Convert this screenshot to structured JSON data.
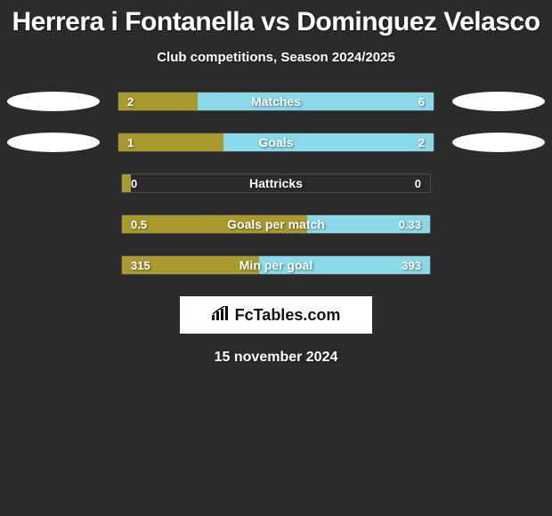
{
  "title": "Herrera i Fontanella vs Dominguez Velasco",
  "subtitle": "Club competitions, Season 2024/2025",
  "colors": {
    "left_bar": "#a89a2f",
    "right_bar": "#8ad8e8",
    "background": "#2b2b2b",
    "ellipse": "#ffffff",
    "text": "#ffffff"
  },
  "rows": [
    {
      "label": "Matches",
      "left_val": "2",
      "right_val": "6",
      "left_pct": 25,
      "right_pct": 75,
      "show_ellipses": true
    },
    {
      "label": "Goals",
      "left_val": "1",
      "right_val": "2",
      "left_pct": 33.3,
      "right_pct": 66.7,
      "show_ellipses": true
    },
    {
      "label": "Hattricks",
      "left_val": "0",
      "right_val": "0",
      "left_pct": 3,
      "right_pct": 0,
      "show_ellipses": false
    },
    {
      "label": "Goals per match",
      "left_val": "0.5",
      "right_val": "0.33",
      "left_pct": 60,
      "right_pct": 40,
      "show_ellipses": false
    },
    {
      "label": "Min per goal",
      "left_val": "315",
      "right_val": "393",
      "left_pct": 44.5,
      "right_pct": 55.5,
      "show_ellipses": false
    }
  ],
  "logo": "FcTables.com",
  "date": "15 november 2024",
  "typography": {
    "title_fontsize": 30,
    "subtitle_fontsize": 15,
    "label_fontsize": 14,
    "value_fontsize": 13,
    "date_fontsize": 16
  }
}
